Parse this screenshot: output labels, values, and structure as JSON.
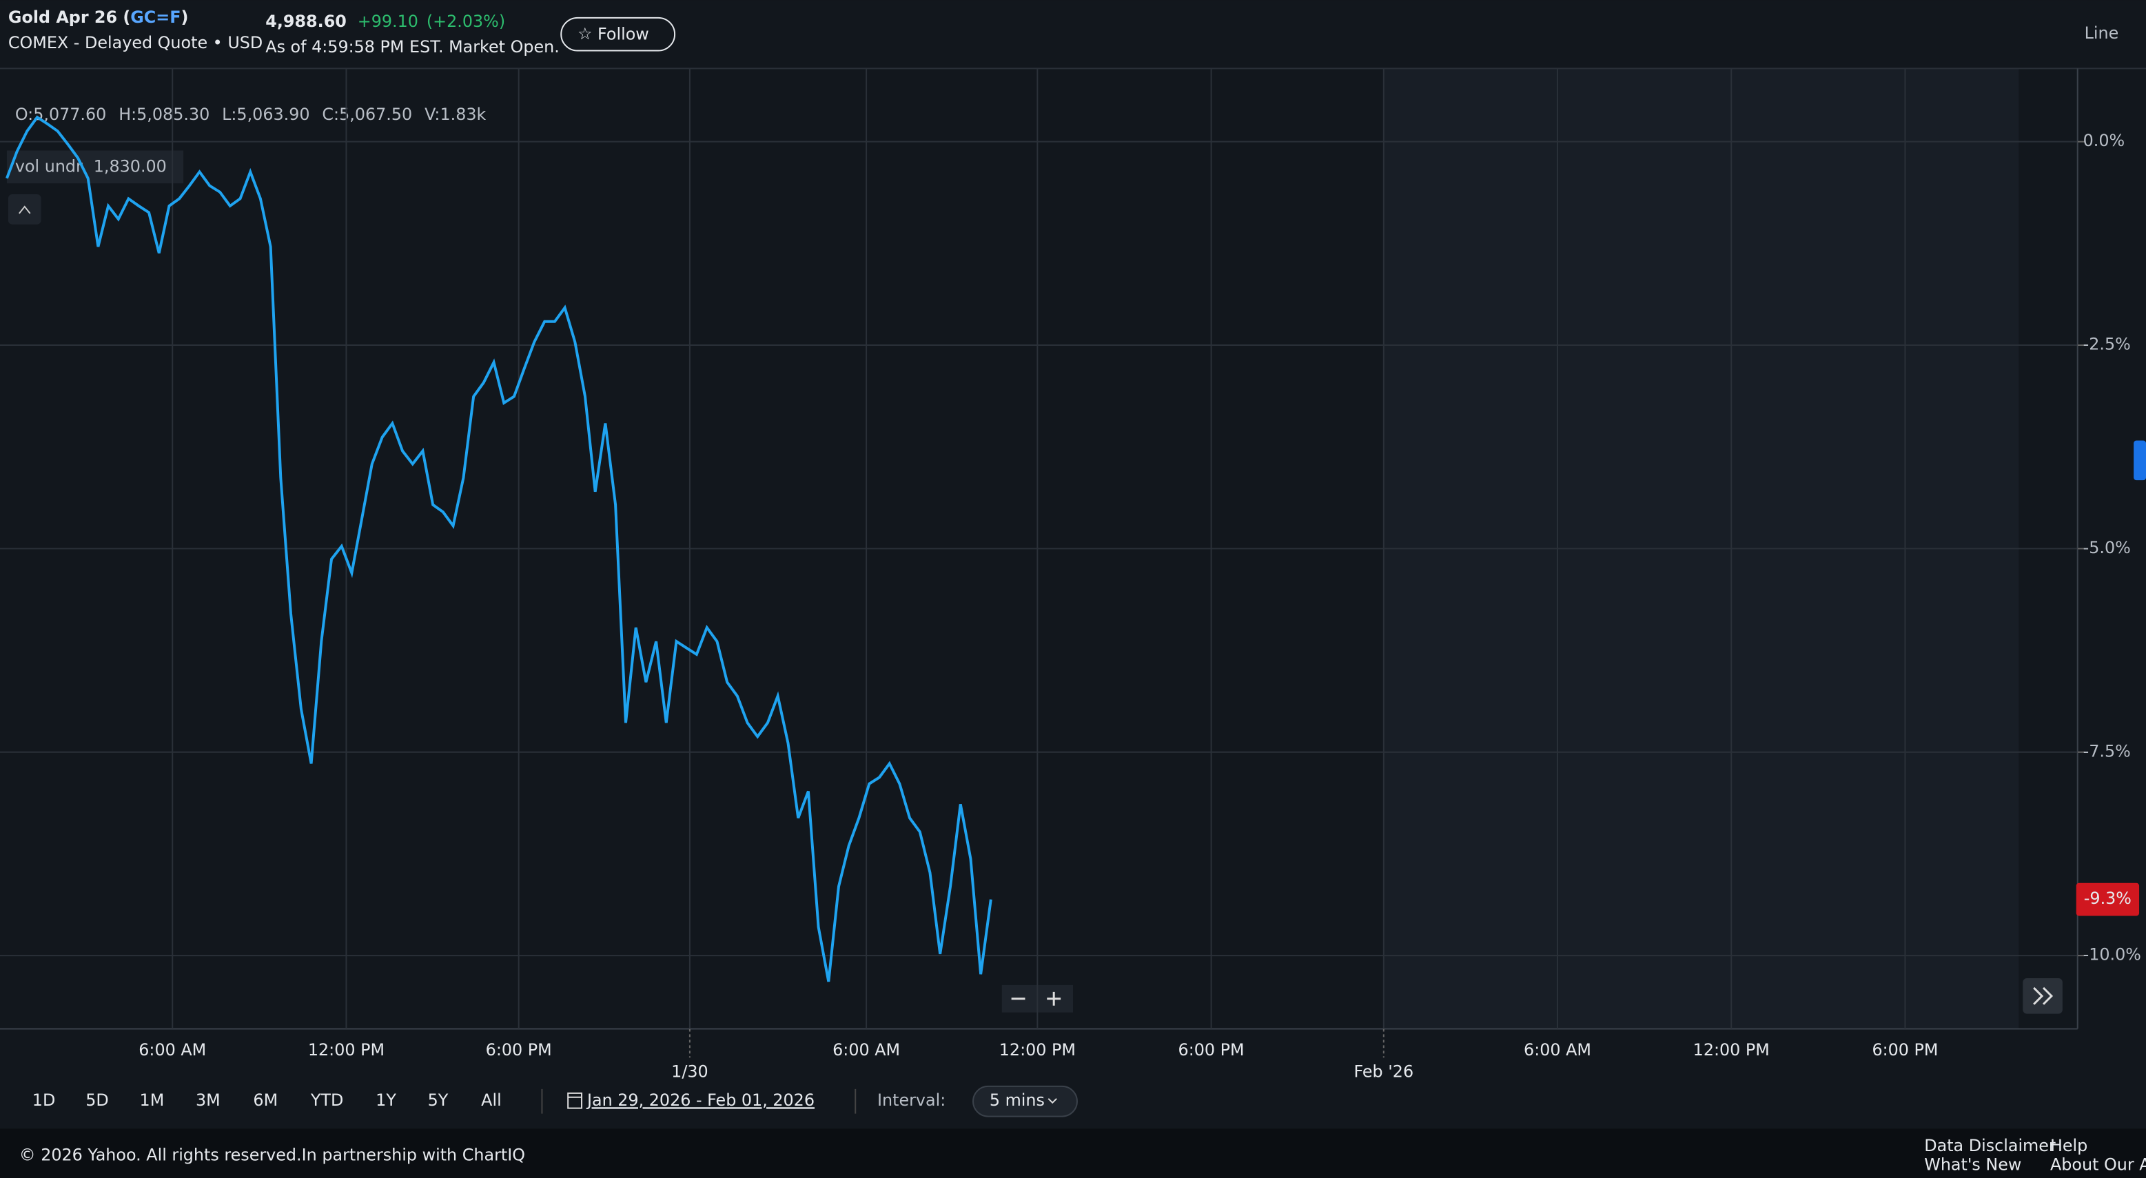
{
  "header": {
    "name": "Gold Apr 26 (",
    "symbol": "GC=F",
    "name_end": ")",
    "exchange": "COMEX - Delayed Quote • USD",
    "price": "4,988.60",
    "change": "+99.10",
    "change_pct": "(+2.03%)",
    "as_of": "As of 4:59:58 PM EST. Market Open.",
    "follow": "Follow",
    "chart_style": "Line"
  },
  "ohlc": {
    "open": "O:5,077.60",
    "high": "H:5,085.30",
    "low": "L:5,063.90",
    "close": "C:5,067.50",
    "volume": "V:1.83k",
    "study_name": "vol undr",
    "study_value": "1,830.00"
  },
  "chart_data": {
    "type": "line",
    "color": "#1fa3f0",
    "grid": true,
    "values": [
      -0.45,
      -0.12,
      0.13,
      0.3,
      0.22,
      0.13,
      -0.03,
      -0.2,
      -0.45,
      -1.29,
      -0.79,
      -0.95,
      -0.7,
      -0.79,
      -0.87,
      -1.37,
      -0.79,
      -0.7,
      -0.54,
      -0.37,
      -0.54,
      -0.62,
      -0.79,
      -0.7,
      -0.37,
      -0.7,
      -1.29,
      -4.13,
      -5.8,
      -6.97,
      -7.64,
      -6.14,
      -5.13,
      -4.97,
      -5.3,
      -4.63,
      -3.96,
      -3.63,
      -3.46,
      -3.8,
      -3.96,
      -3.8,
      -4.46,
      -4.55,
      -4.72,
      -4.13,
      -3.13,
      -2.96,
      -2.71,
      -3.21,
      -3.13,
      -2.79,
      -2.46,
      -2.21,
      -2.21,
      -2.04,
      -2.46,
      -3.13,
      -4.3,
      -3.46,
      -4.46,
      -7.14,
      -5.97,
      -6.64,
      -6.14,
      -7.14,
      -6.14,
      -6.22,
      -6.3,
      -5.97,
      -6.14,
      -6.64,
      -6.81,
      -7.14,
      -7.31,
      -7.14,
      -6.81,
      -7.39,
      -8.31,
      -7.98,
      -9.65,
      -10.32,
      -9.15,
      -8.65,
      -8.31,
      -7.89,
      -7.81,
      -7.64,
      -7.89,
      -8.31,
      -8.48,
      -8.98,
      -9.98,
      -9.15,
      -8.14,
      -8.81,
      -10.23,
      -9.31
    ],
    "ylim": [
      -10.9,
      0.9
    ],
    "yticks": [
      {
        "value": 0,
        "label": "0.0%"
      },
      {
        "value": -2.5,
        "label": "-2.5%"
      },
      {
        "value": -5,
        "label": "-5.0%"
      },
      {
        "value": -7.5,
        "label": "-7.5%"
      },
      {
        "value": -10,
        "label": "-10.0%"
      }
    ],
    "last_label": "-9.3%",
    "time_labels": [
      "6:00 AM",
      "12:00 PM",
      "6:00 PM",
      "6:00 AM",
      "12:00 PM",
      "6:00 PM",
      "6:00 AM",
      "12:00 PM",
      "6:00 PM"
    ],
    "date_labels": [
      "1/30",
      "Feb '26"
    ]
  },
  "controls": {
    "ranges": [
      "1D",
      "5D",
      "1M",
      "3M",
      "6M",
      "YTD",
      "1Y",
      "5Y",
      "All"
    ],
    "date_range": "Jan 29, 2026 - Feb 01, 2026",
    "interval_label": "Interval:",
    "interval": "5 mins"
  },
  "footer": {
    "copyright": "© 2026 Yahoo. All rights reserved.In partnership with ChartIQ",
    "links": [
      "Data Disclaimer",
      "What's New",
      "Help",
      "About Our Ad"
    ]
  }
}
